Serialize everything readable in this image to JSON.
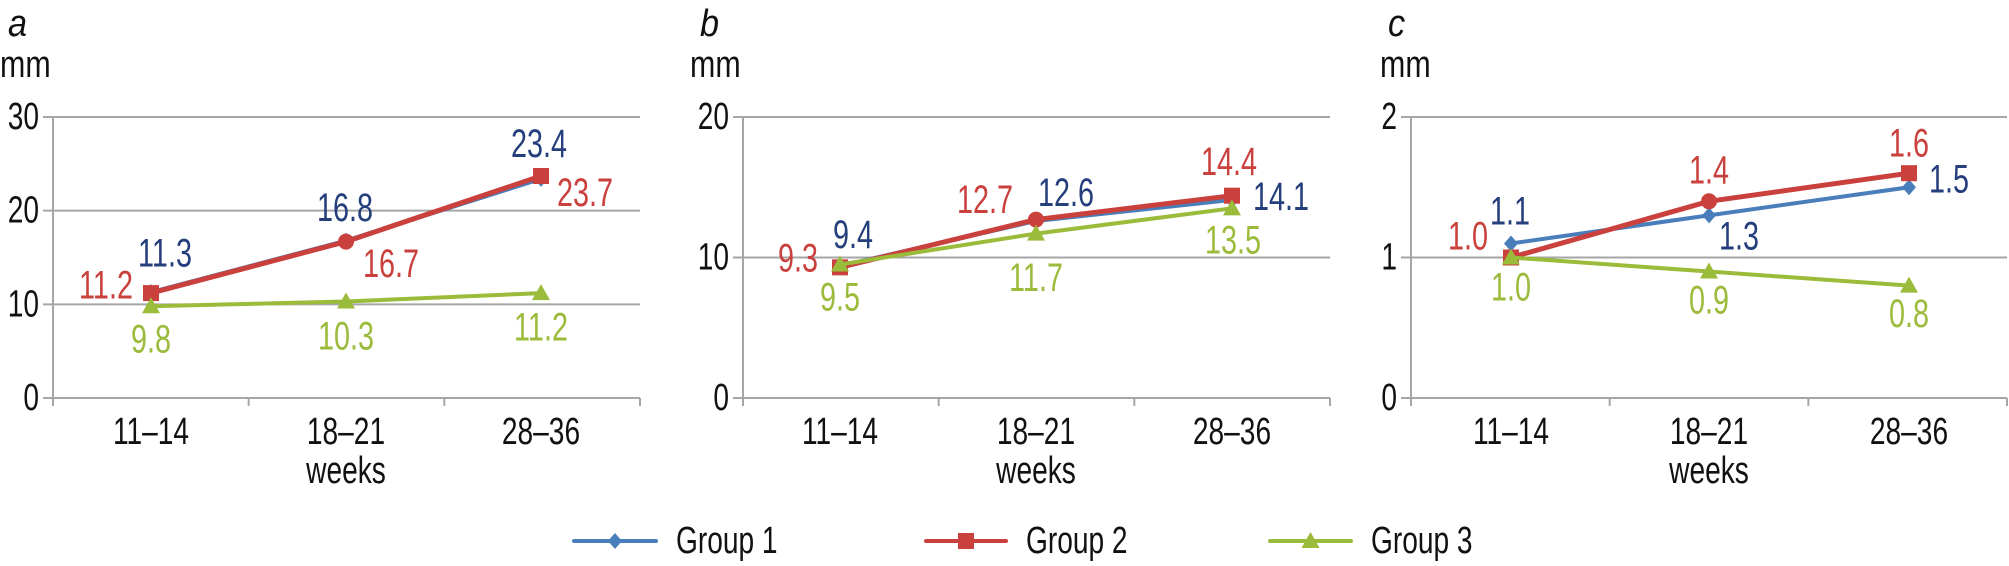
{
  "chart_data": [
    {
      "type": "line",
      "panel_label": "a",
      "ylabel": "mm",
      "xlabel": "weeks",
      "categories": [
        "11–14",
        "18–21",
        "28–36"
      ],
      "ylim": [
        0,
        30
      ],
      "yticks": [
        "0",
        "10",
        "20",
        "30"
      ],
      "grid": true,
      "series": [
        {
          "name": "Group 1",
          "values": [
            11.3,
            16.8,
            23.4
          ],
          "labels": [
            "11.3",
            "16.8",
            "23.4"
          ]
        },
        {
          "name": "Group 2",
          "values": [
            11.2,
            16.7,
            23.7
          ],
          "labels": [
            "11.2",
            "16.7",
            "23.7"
          ]
        },
        {
          "name": "Group 3",
          "values": [
            9.8,
            10.3,
            11.2
          ],
          "labels": [
            "9.8",
            "10.3",
            "11.2"
          ]
        }
      ]
    },
    {
      "type": "line",
      "panel_label": "b",
      "ylabel": "mm",
      "xlabel": "weeks",
      "categories": [
        "11–14",
        "18–21",
        "28–36"
      ],
      "ylim": [
        0,
        20
      ],
      "yticks": [
        "0",
        "10",
        "20"
      ],
      "grid": true,
      "series": [
        {
          "name": "Group 1",
          "values": [
            9.4,
            12.6,
            14.1
          ],
          "labels": [
            "9.4",
            "12.6",
            "14.1"
          ]
        },
        {
          "name": "Group 2",
          "values": [
            9.3,
            12.7,
            14.4
          ],
          "labels": [
            "9.3",
            "12.7",
            "14.4"
          ]
        },
        {
          "name": "Group 3",
          "values": [
            9.5,
            11.7,
            13.5
          ],
          "labels": [
            "9.5",
            "11.7",
            "13.5"
          ]
        }
      ]
    },
    {
      "type": "line",
      "panel_label": "c",
      "ylabel": "mm",
      "xlabel": "weeks",
      "categories": [
        "11–14",
        "18–21",
        "28–36"
      ],
      "ylim": [
        0,
        2
      ],
      "yticks": [
        "0",
        "1",
        "2"
      ],
      "grid": true,
      "series": [
        {
          "name": "Group 1",
          "values": [
            1.1,
            1.3,
            1.5
          ],
          "labels": [
            "1.1",
            "1.3",
            "1.5"
          ]
        },
        {
          "name": "Group 2",
          "values": [
            1.0,
            1.4,
            1.6
          ],
          "labels": [
            "1.0",
            "1.4",
            "1.6"
          ]
        },
        {
          "name": "Group 3",
          "values": [
            1.0,
            0.9,
            0.8
          ],
          "labels": [
            "1.0",
            "0.9",
            "0.8"
          ]
        }
      ]
    }
  ],
  "legend": {
    "placement": "bottom-center",
    "items": [
      {
        "name": "Group 1",
        "marker": "diamond-icon"
      },
      {
        "name": "Group 2",
        "marker": "square-icon"
      },
      {
        "name": "Group 3",
        "marker": "triangle-icon"
      }
    ]
  },
  "colors": {
    "series_lines": [
      "#4a7ebb",
      "#c9403c",
      "#9bbb3b"
    ],
    "series_labels": [
      "#253f7c",
      "#c9403c",
      "#9bbb3b"
    ],
    "grid": "#a6a6a6",
    "text": "#111111"
  }
}
